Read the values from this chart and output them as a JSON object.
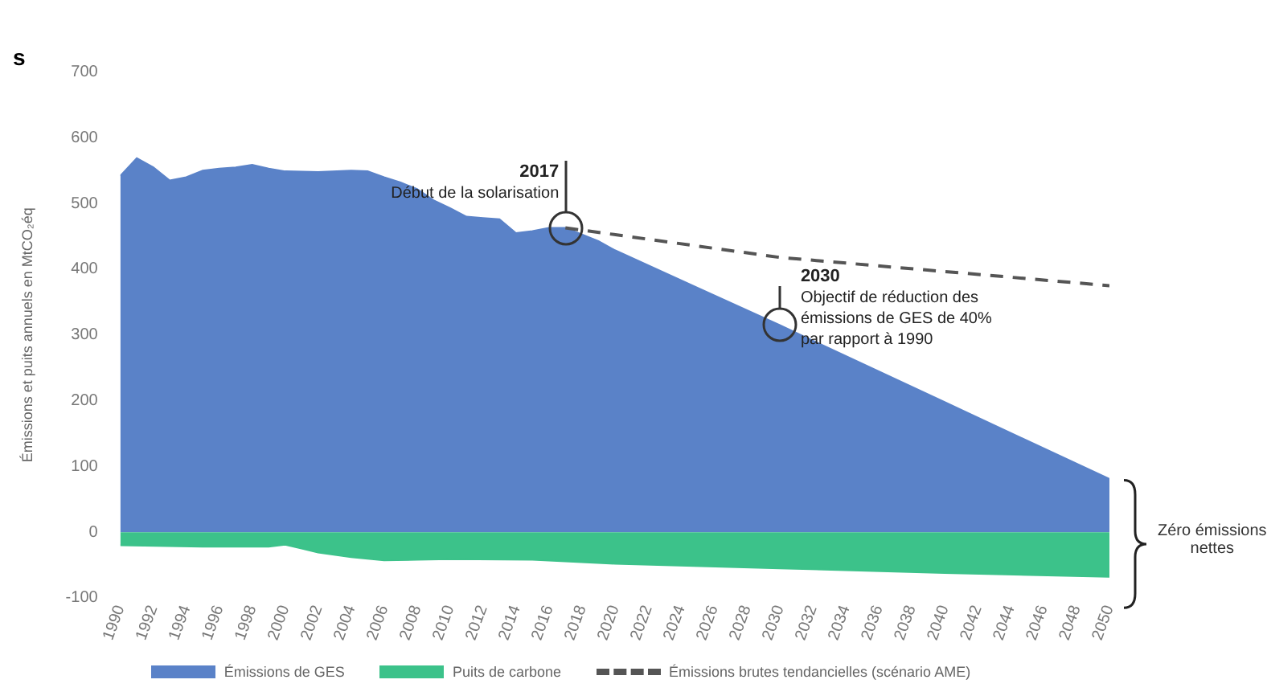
{
  "chart_data": {
    "type": "area",
    "title": "s",
    "ylabel": "Émissions et puits annuels en MtCO₂éq",
    "xlim": [
      1990,
      2050
    ],
    "xticks": [
      1990,
      1992,
      1994,
      1996,
      1998,
      2000,
      2002,
      2004,
      2006,
      2008,
      2010,
      2012,
      2014,
      2016,
      2018,
      2020,
      2022,
      2024,
      2026,
      2028,
      2030,
      2032,
      2034,
      2036,
      2038,
      2040,
      2042,
      2044,
      2046,
      2048,
      2050
    ],
    "ylim": [
      -100,
      700
    ],
    "yticks": [
      -100,
      0,
      100,
      200,
      300,
      400,
      500,
      600,
      700
    ],
    "series": [
      {
        "name": "Émissions de GES",
        "type": "area",
        "color": "#5a82c8",
        "x": [
          1990,
          1991,
          1992,
          1993,
          1994,
          1995,
          1996,
          1997,
          1998,
          1999,
          2000,
          2002,
          2004,
          2005,
          2006,
          2007,
          2008,
          2009,
          2010,
          2011,
          2012,
          2013,
          2014,
          2015,
          2016,
          2017,
          2018,
          2019,
          2020,
          2025,
          2030,
          2040,
          2050
        ],
        "values": [
          542,
          569,
          555,
          535,
          540,
          550,
          553,
          555,
          559,
          553,
          549,
          548,
          550,
          549,
          540,
          532,
          522,
          505,
          493,
          480,
          478,
          476,
          455,
          458,
          463,
          463,
          453,
          443,
          429,
          372,
          315,
          198,
          81
        ]
      },
      {
        "name": "Puits de carbone",
        "type": "area",
        "color": "#3cc28a",
        "x": [
          1990,
          1995,
          1999,
          2000,
          2001,
          2002,
          2004,
          2006,
          2008,
          2010,
          2015,
          2020,
          2030,
          2040,
          2050
        ],
        "values": [
          -20,
          -22,
          -22,
          -19,
          -25,
          -31,
          -38,
          -43,
          -42,
          -41,
          -42,
          -48,
          -55,
          -62,
          -68
        ]
      },
      {
        "name": "Émissions brutes tendancielles (scénario AME)",
        "type": "line",
        "line_style": "dashed",
        "color": "#555555",
        "x": [
          2017,
          2030,
          2050
        ],
        "values": [
          463,
          418,
          375
        ]
      }
    ],
    "annotations": [
      {
        "text": "2017\nDébut de la solarisation",
        "x": 2017,
        "y": 463
      },
      {
        "text": "2030\nObjectif de réduction des\némissions de GES de 40%\npar rapport à 1990",
        "x": 2030,
        "y": 315
      },
      {
        "text": "Zéro émissions\nnettes",
        "x": 2050,
        "y": 0
      }
    ],
    "legend": "bottom",
    "marker": "none"
  }
}
